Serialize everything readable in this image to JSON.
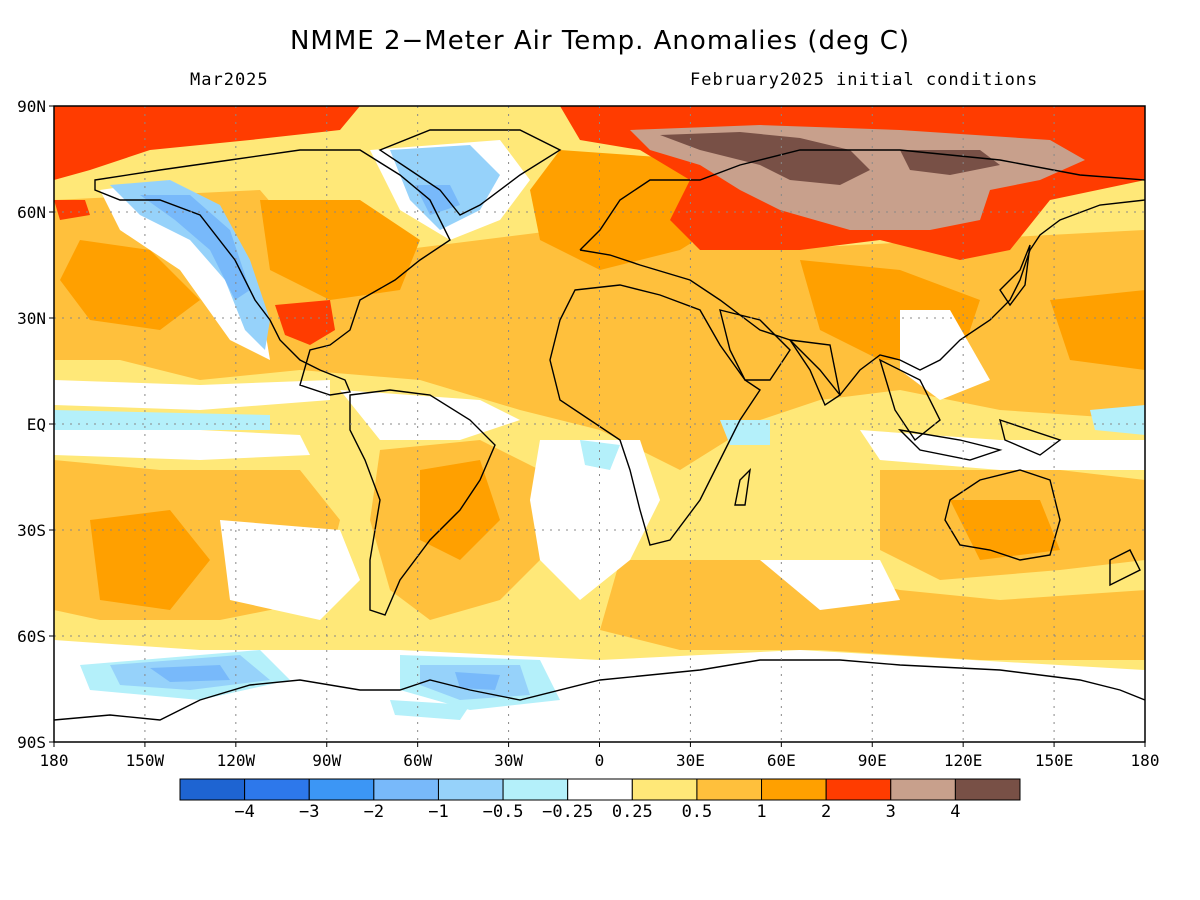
{
  "title": "NMME 2−Meter Air Temp. Anomalies (deg C)",
  "subtitle_left": "Mar2025",
  "subtitle_right": "February2025 initial conditions",
  "lat_ticks": [
    {
      "lat": 90,
      "label": "90N"
    },
    {
      "lat": 60,
      "label": "60N"
    },
    {
      "lat": 30,
      "label": "30N"
    },
    {
      "lat": 0,
      "label": "EQ"
    },
    {
      "lat": -30,
      "label": "30S"
    },
    {
      "lat": -60,
      "label": "60S"
    },
    {
      "lat": -90,
      "label": "90S"
    }
  ],
  "lon_ticks": [
    {
      "lon": -180,
      "label": "180"
    },
    {
      "lon": -150,
      "label": "150W"
    },
    {
      "lon": -120,
      "label": "120W"
    },
    {
      "lon": -90,
      "label": "90W"
    },
    {
      "lon": -60,
      "label": "60W"
    },
    {
      "lon": -30,
      "label": "30W"
    },
    {
      "lon": 0,
      "label": "0"
    },
    {
      "lon": 30,
      "label": "30E"
    },
    {
      "lon": 60,
      "label": "60E"
    },
    {
      "lon": 90,
      "label": "90E"
    },
    {
      "lon": 120,
      "label": "120E"
    },
    {
      "lon": 150,
      "label": "150E"
    },
    {
      "lon": 180,
      "label": "180"
    }
  ],
  "colorbar": {
    "colors": [
      "#1e64d2",
      "#2d78eb",
      "#3c96f5",
      "#78b9fa",
      "#96d2fa",
      "#b4f0fa",
      "#ffffff",
      "#ffe878",
      "#ffc03c",
      "#ffa000",
      "#ff3c00",
      "#c8a08c",
      "#785046"
    ],
    "labels": [
      "−4",
      "−3",
      "−2",
      "−1",
      "−0.5",
      "−0.25",
      "0.25",
      "0.5",
      "1",
      "2",
      "3",
      "4"
    ]
  }
}
